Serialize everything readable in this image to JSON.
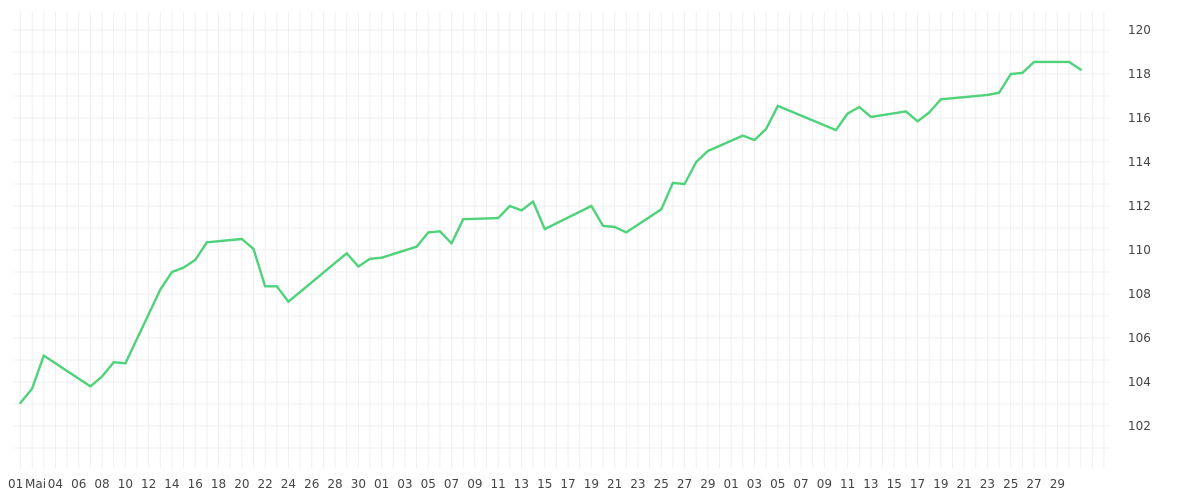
{
  "chart_data": {
    "type": "line",
    "title": "",
    "xlabel": "",
    "ylabel": "",
    "grid": true,
    "legend": "none",
    "line_color": "#4ed27a",
    "ylim": [
      100,
      120.5
    ],
    "y_ticks": [
      102,
      104,
      106,
      108,
      110,
      112,
      114,
      116,
      118,
      120
    ],
    "x_ticks": [
      "01",
      "Mai",
      "04",
      "06",
      "08",
      "10",
      "12",
      "14",
      "16",
      "18",
      "20",
      "22",
      "24",
      "26",
      "28",
      "30",
      "01",
      "03",
      "05",
      "07",
      "09",
      "11",
      "13",
      "15",
      "17",
      "19",
      "21",
      "23",
      "25",
      "27",
      "29",
      "01",
      "03",
      "05",
      "07",
      "09",
      "11",
      "13",
      "15",
      "17",
      "19",
      "21",
      "23",
      "25",
      "27",
      "29"
    ],
    "series": [
      {
        "values": [
          103.05,
          103.7,
          105.2,
          103.8,
          104.25,
          104.9,
          104.85,
          108.2,
          109.0,
          109.2,
          109.55,
          110.35,
          110.5,
          110.05,
          108.35,
          108.35,
          107.65,
          109.85,
          109.25,
          109.6,
          109.65,
          110.15,
          110.8,
          110.85,
          110.3,
          111.4,
          111.45,
          112.0,
          111.8,
          112.2,
          110.95,
          112.0,
          111.1,
          111.05,
          110.8,
          111.85,
          113.05,
          113.0,
          114.0,
          114.5,
          115.2,
          115.0,
          115.5,
          116.55,
          115.45,
          116.2,
          116.5,
          116.05,
          116.3,
          115.85,
          116.25,
          116.85,
          117.05,
          117.15,
          118.0,
          118.05,
          118.55,
          118.55,
          118.55,
          118.2
        ],
        "x_positions": [
          0,
          1,
          2,
          6,
          7,
          8,
          9,
          12,
          13,
          14,
          15,
          16,
          19,
          20,
          21,
          22,
          23,
          28,
          29,
          30,
          31,
          34,
          35,
          36,
          37,
          38,
          41,
          42,
          43,
          44,
          45,
          49,
          50,
          51,
          52,
          55,
          56,
          57,
          58,
          59,
          62,
          63,
          64,
          65,
          70,
          71,
          72,
          73,
          76,
          77,
          78,
          79,
          83,
          84,
          85,
          86,
          87,
          88,
          90,
          91
        ]
      }
    ]
  }
}
